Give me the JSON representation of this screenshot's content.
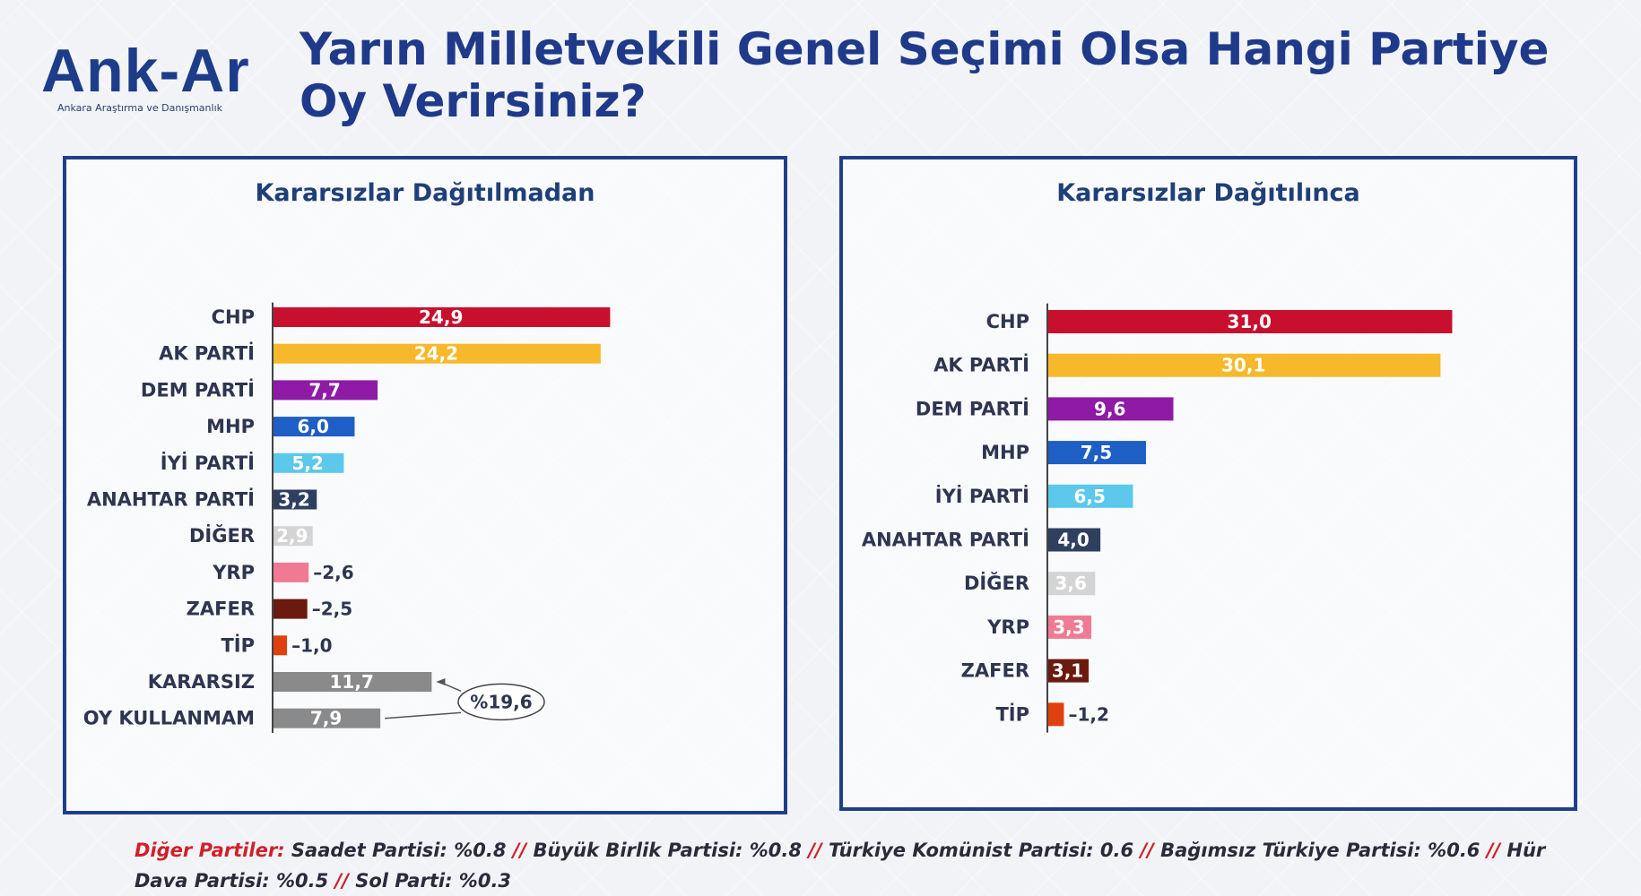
{
  "logo": {
    "text": "Ank-Ar",
    "subtitle": "Ankara Araştırma ve Danışmanlık"
  },
  "title": "Yarın Milletvekili Genel Seçimi Olsa Hangi Partiye Oy Verirsiniz?",
  "chart_data": [
    {
      "type": "bar",
      "orientation": "horizontal",
      "title": "Kararsızlar Dağıtılmadan",
      "categories": [
        "CHP",
        "AK PARTİ",
        "DEM PARTİ",
        "MHP",
        "İYİ PARTİ",
        "ANAHTAR PARTİ",
        "DİĞER",
        "YRP",
        "ZAFER",
        "TİP",
        "KARARSIZ",
        "OY KULLANMAM"
      ],
      "values": [
        24.9,
        24.2,
        7.7,
        6.0,
        5.2,
        3.2,
        2.9,
        2.6,
        2.5,
        1.0,
        11.7,
        7.9
      ],
      "labels": [
        "24,9",
        "24,2",
        "7,7",
        "6,0",
        "5,2",
        "3,2",
        "2,9",
        "2,6",
        "2,5",
        "1,0",
        "11,7",
        "7,9"
      ],
      "colors": [
        "#c8102e",
        "#f6b92b",
        "#8e1aa6",
        "#1d5fc4",
        "#5bc8ec",
        "#2f3f5f",
        "#d4d4d4",
        "#f07a93",
        "#6b1a10",
        "#e0400f",
        "#8a8a8a",
        "#8a8a8a"
      ],
      "annotation": {
        "text": "%19,6",
        "applies_to": [
          "KARARSIZ",
          "OY KULLANMAM"
        ]
      },
      "xlim": [
        0,
        26
      ]
    },
    {
      "type": "bar",
      "orientation": "horizontal",
      "title": "Kararsızlar Dağıtılınca",
      "categories": [
        "CHP",
        "AK PARTİ",
        "DEM PARTİ",
        "MHP",
        "İYİ PARTİ",
        "ANAHTAR PARTİ",
        "DİĞER",
        "YRP",
        "ZAFER",
        "TİP"
      ],
      "values": [
        31.0,
        30.1,
        9.6,
        7.5,
        6.5,
        4.0,
        3.6,
        3.3,
        3.1,
        1.2
      ],
      "labels": [
        "31,0",
        "30,1",
        "9,6",
        "7,5",
        "6,5",
        "4,0",
        "3,6",
        "3,3",
        "3,1",
        "1,2"
      ],
      "colors": [
        "#c8102e",
        "#f6b92b",
        "#8e1aa6",
        "#1d5fc4",
        "#5bc8ec",
        "#2f3f5f",
        "#d4d4d4",
        "#f07a93",
        "#6b1a10",
        "#e0400f"
      ],
      "xlim": [
        0,
        32
      ]
    }
  ],
  "footnote": {
    "label": "Diğer Partiler:",
    "segments": [
      "Saadet Partisi: %0.8",
      "Büyük Birlik Partisi: %0.8",
      "Türkiye Komünist Partisi: 0.6",
      "Bağımsız Türkiye Partisi: %0.6",
      "Hür Dava Partisi: %0.5",
      "Sol Parti: %0.3"
    ],
    "separator": "//"
  }
}
